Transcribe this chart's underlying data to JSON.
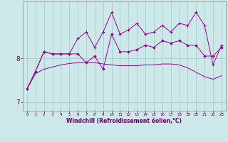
{
  "xlabel": "Windchill (Refroidissement éolien,°C)",
  "x_values": [
    0,
    1,
    2,
    3,
    4,
    5,
    6,
    7,
    8,
    9,
    10,
    11,
    12,
    13,
    14,
    15,
    16,
    17,
    18,
    19,
    20,
    21,
    22,
    23
  ],
  "upper_line": [
    7.3,
    7.7,
    8.15,
    8.1,
    8.1,
    8.1,
    8.45,
    8.6,
    8.25,
    8.6,
    9.05,
    8.55,
    8.65,
    8.8,
    8.55,
    8.6,
    8.75,
    8.6,
    8.8,
    8.75,
    9.05,
    8.75,
    7.85,
    8.3
  ],
  "main_line": [
    7.3,
    7.7,
    8.15,
    8.1,
    8.1,
    8.1,
    8.1,
    7.9,
    8.05,
    7.75,
    8.55,
    8.15,
    8.15,
    8.2,
    8.3,
    8.25,
    8.4,
    8.35,
    8.4,
    8.3,
    8.3,
    8.05,
    8.05,
    8.25
  ],
  "lower_line": [
    7.3,
    7.65,
    7.75,
    7.8,
    7.85,
    7.88,
    7.9,
    7.9,
    7.9,
    7.87,
    7.85,
    7.83,
    7.83,
    7.83,
    7.85,
    7.85,
    7.87,
    7.87,
    7.85,
    7.78,
    7.68,
    7.58,
    7.52,
    7.6
  ],
  "line_color": "#990099",
  "bg_color": "#cce8e8",
  "grid_color": "#aacccc",
  "ylim": [
    6.8,
    9.3
  ],
  "yticks": [
    7,
    8
  ],
  "xlim": [
    -0.5,
    23.5
  ]
}
